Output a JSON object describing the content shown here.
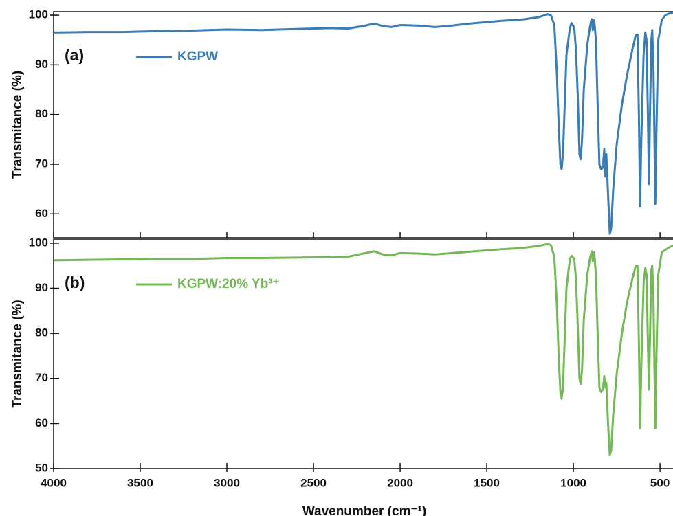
{
  "chart_data": [
    {
      "type": "line",
      "label": "(a)",
      "ylabel": "Transmitance (%)",
      "xlim": [
        4000,
        425
      ],
      "xticks": [
        4000,
        3500,
        3000,
        2500,
        2000,
        1500,
        1000,
        500
      ],
      "ylim": [
        55.2,
        100.7
      ],
      "yticks": [
        60,
        70,
        80,
        90,
        100
      ],
      "x": [
        4000,
        3800,
        3600,
        3400,
        3200,
        3000,
        2800,
        2600,
        2400,
        2300,
        2200,
        2150,
        2100,
        2050,
        2000,
        1900,
        1800,
        1700,
        1600,
        1500,
        1400,
        1300,
        1200,
        1150,
        1130,
        1110,
        1095,
        1085,
        1075,
        1068,
        1060,
        1050,
        1040,
        1020,
        1010,
        995,
        985,
        975,
        965,
        958,
        950,
        940,
        920,
        905,
        895,
        888,
        880,
        870,
        860,
        850,
        840,
        830,
        822,
        815,
        810,
        800,
        790,
        782,
        770,
        750,
        720,
        690,
        660,
        640,
        630,
        622,
        615,
        608,
        595,
        585,
        578,
        570,
        564,
        558,
        550,
        545,
        538,
        532,
        527,
        520,
        510,
        490,
        470,
        450,
        425
      ],
      "series": [
        {
          "name": "KGPW",
          "color": "#3a7db5",
          "values": [
            96.5,
            96.6,
            96.6,
            96.8,
            96.9,
            97.1,
            97.0,
            97.2,
            97.4,
            97.3,
            97.9,
            98.3,
            97.8,
            97.6,
            98.0,
            97.9,
            97.6,
            97.9,
            98.3,
            98.6,
            98.9,
            99.1,
            99.6,
            100.2,
            100.0,
            98,
            88,
            78,
            70,
            69,
            72,
            82,
            92,
            97.5,
            98.4,
            97.5,
            93,
            84,
            72,
            71,
            75,
            85,
            94,
            97.5,
            99.2,
            97,
            99,
            95,
            82,
            70,
            69,
            69.3,
            73,
            67.5,
            72,
            64,
            56,
            57,
            65,
            74,
            82,
            88,
            93,
            96,
            96.1,
            80,
            61.5,
            75,
            92,
            96.5,
            95,
            80,
            66,
            80,
            95,
            97,
            90,
            75,
            62,
            78,
            95,
            99,
            100,
            100.3,
            100.5
          ]
        }
      ]
    },
    {
      "type": "line",
      "label": "(b)",
      "ylabel": "Transmitance (%)",
      "xlabel": "Wavenumber (cm⁻¹)",
      "xlim": [
        4000,
        425
      ],
      "xticks": [
        4000,
        3500,
        3000,
        2500,
        2000,
        1500,
        1000,
        500
      ],
      "ylim": [
        50,
        100.9
      ],
      "yticks": [
        50,
        60,
        70,
        80,
        90,
        100
      ],
      "x": [
        4000,
        3800,
        3600,
        3400,
        3200,
        3000,
        2800,
        2600,
        2400,
        2300,
        2200,
        2150,
        2100,
        2050,
        2000,
        1900,
        1800,
        1700,
        1600,
        1500,
        1400,
        1300,
        1200,
        1150,
        1130,
        1110,
        1095,
        1085,
        1075,
        1068,
        1060,
        1050,
        1040,
        1020,
        1010,
        995,
        985,
        975,
        965,
        958,
        950,
        940,
        920,
        905,
        895,
        888,
        880,
        870,
        860,
        850,
        840,
        830,
        822,
        815,
        810,
        800,
        790,
        782,
        770,
        750,
        720,
        690,
        660,
        640,
        630,
        622,
        615,
        608,
        595,
        585,
        578,
        570,
        564,
        558,
        550,
        545,
        538,
        532,
        527,
        520,
        510,
        490,
        470,
        450,
        425
      ],
      "series": [
        {
          "name": "KGPW:20% Yb³⁺",
          "color": "#74b857",
          "values": [
            96.2,
            96.3,
            96.4,
            96.5,
            96.5,
            96.7,
            96.7,
            96.8,
            96.9,
            97.0,
            97.8,
            98.2,
            97.5,
            97.3,
            97.8,
            97.7,
            97.5,
            97.8,
            98.1,
            98.4,
            98.7,
            98.9,
            99.4,
            99.8,
            99.6,
            97,
            86,
            75,
            67,
            65.5,
            68,
            79,
            90,
            96.5,
            97.2,
            96.5,
            92,
            82,
            70,
            68.8,
            72,
            83,
            93,
            96.5,
            98.2,
            96,
            98,
            93,
            80,
            68,
            67,
            67.5,
            70.5,
            68,
            69,
            60,
            53,
            54,
            62,
            71,
            80,
            87,
            92,
            95,
            95,
            78,
            59,
            73,
            91,
            94.5,
            93,
            78,
            67.5,
            79,
            94,
            95,
            88,
            72,
            59,
            76,
            93,
            98,
            98.5,
            99,
            99.5
          ]
        }
      ]
    }
  ]
}
